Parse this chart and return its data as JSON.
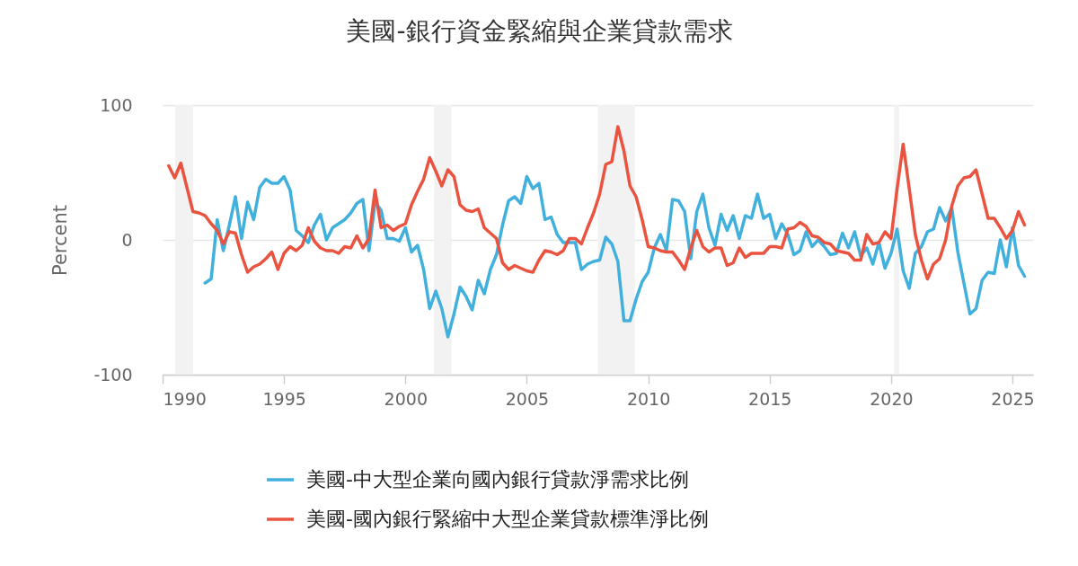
{
  "chart_data": {
    "type": "line",
    "title": "美國-銀行資金緊縮與企業貸款需求",
    "ylabel": "Percent",
    "x": [
      1990.25,
      1990.5,
      1990.75,
      1991,
      1991.25,
      1991.5,
      1991.75,
      1992,
      1992.25,
      1992.5,
      1992.75,
      1993,
      1993.25,
      1993.5,
      1993.75,
      1994,
      1994.25,
      1994.5,
      1994.75,
      1995,
      1995.25,
      1995.5,
      1995.75,
      1996,
      1996.25,
      1996.5,
      1996.75,
      1997,
      1997.25,
      1997.5,
      1997.75,
      1998,
      1998.25,
      1998.5,
      1998.75,
      1999,
      1999.25,
      1999.5,
      1999.75,
      2000,
      2000.25,
      2000.5,
      2000.75,
      2001,
      2001.25,
      2001.5,
      2001.75,
      2002,
      2002.25,
      2002.5,
      2002.75,
      2003,
      2003.25,
      2003.5,
      2003.75,
      2004,
      2004.25,
      2004.5,
      2004.75,
      2005,
      2005.25,
      2005.5,
      2005.75,
      2006,
      2006.25,
      2006.5,
      2006.75,
      2007,
      2007.25,
      2007.5,
      2007.75,
      2008,
      2008.25,
      2008.5,
      2008.75,
      2009,
      2009.25,
      2009.5,
      2009.75,
      2010,
      2010.25,
      2010.5,
      2010.75,
      2011,
      2011.25,
      2011.5,
      2011.75,
      2012,
      2012.25,
      2012.5,
      2012.75,
      2013,
      2013.25,
      2013.5,
      2013.75,
      2014,
      2014.25,
      2014.5,
      2014.75,
      2015,
      2015.25,
      2015.5,
      2015.75,
      2016,
      2016.25,
      2016.5,
      2016.75,
      2017,
      2017.25,
      2017.5,
      2017.75,
      2018,
      2018.25,
      2018.5,
      2018.75,
      2019,
      2019.25,
      2019.5,
      2019.75,
      2020,
      2020.25,
      2020.5,
      2020.75,
      2021,
      2021.25,
      2021.5,
      2021.75,
      2022,
      2022.25,
      2022.5,
      2022.75,
      2023,
      2023.25,
      2023.5,
      2023.75,
      2024,
      2024.25,
      2024.5,
      2024.75,
      2025,
      2025.25,
      2025.5
    ],
    "series": [
      {
        "name": "美國-中大型企業向國內銀行貸款淨需求比例",
        "color": "#41b0dc",
        "values": [
          null,
          null,
          null,
          null,
          null,
          null,
          -32,
          -29,
          15,
          -8,
          11,
          32,
          1,
          28,
          15,
          39,
          45,
          42,
          42,
          47,
          37,
          7,
          3,
          -2,
          11,
          19,
          0,
          9,
          12,
          15,
          20,
          27,
          30,
          -8,
          28,
          22,
          1,
          1,
          -1,
          9,
          -9,
          -4,
          -22,
          -51,
          -38,
          -51,
          -72,
          -55,
          -35,
          -42,
          -52,
          -30,
          -40,
          -22,
          -11,
          11,
          29,
          32,
          27,
          47,
          38,
          42,
          15,
          17,
          4,
          -2,
          -2,
          -2,
          -22,
          -18,
          -16,
          -15,
          2,
          -3,
          -16,
          -60,
          -60,
          -44,
          -31,
          -24,
          -6,
          4,
          -8,
          30,
          29,
          21,
          -14,
          21,
          34,
          9,
          -4,
          19,
          7,
          18,
          1,
          18,
          16,
          34,
          16,
          19,
          1,
          12,
          4,
          -11,
          -8,
          6,
          -5,
          0,
          -5,
          -11,
          -10,
          5,
          -6,
          6,
          -12,
          -6,
          -18,
          -2,
          -21,
          -10,
          8,
          -23,
          -36,
          -10,
          -5,
          6,
          8,
          24,
          14,
          24,
          -9,
          -32,
          -55,
          -51,
          -30,
          -24,
          -25,
          0,
          -20,
          9,
          -19,
          -27
        ]
      },
      {
        "name": "美國-國內銀行緊縮中大型企業貸款標準淨比例",
        "color": "#e9533f",
        "values": [
          55,
          46,
          57,
          39,
          21,
          20,
          18,
          12,
          7,
          -3,
          6,
          5,
          -11,
          -24,
          -20,
          -18,
          -14,
          -9,
          -22,
          -10,
          -5,
          -8,
          -4,
          9,
          -1,
          -6,
          -8,
          -8,
          -10,
          -5,
          -6,
          3,
          -6,
          1,
          37,
          9,
          11,
          7,
          10,
          12,
          26,
          36,
          45,
          61,
          51,
          40,
          52,
          47,
          26,
          22,
          21,
          23,
          9,
          5,
          1,
          -17,
          -22,
          -19,
          -21,
          -23,
          -24,
          -15,
          -8,
          -9,
          -11,
          -8,
          1,
          1,
          -3,
          9,
          20,
          34,
          56,
          58,
          84,
          66,
          40,
          32,
          15,
          -5,
          -6,
          -8,
          -9,
          -9,
          -15,
          -22,
          -6,
          7,
          -5,
          -9,
          -6,
          -6,
          -19,
          -17,
          -6,
          -13,
          -10,
          -10,
          -10,
          -5,
          -5,
          -6,
          8,
          9,
          13,
          10,
          3,
          2,
          -2,
          -3,
          -8,
          -9,
          -10,
          -15,
          -15,
          4,
          -3,
          -2,
          6,
          1,
          38,
          71,
          38,
          4,
          -15,
          -29,
          -18,
          -14,
          0,
          25,
          40,
          46,
          47,
          52,
          34,
          16,
          16,
          9,
          1,
          7,
          21,
          11
        ]
      }
    ],
    "xlim": [
      1990,
      2025.85
    ],
    "xticks": [
      1990,
      1995,
      2000,
      2005,
      2010,
      2015,
      2020,
      2025
    ],
    "ylim": [
      -100,
      100
    ],
    "yticks": [
      -100,
      0,
      100
    ],
    "bands": [
      {
        "axis": "x",
        "from": 1990.52,
        "to": 1991.26,
        "color": "#f2f2f2"
      },
      {
        "axis": "x",
        "from": 2001.18,
        "to": 2001.9,
        "color": "#f2f2f2"
      },
      {
        "axis": "x",
        "from": 2007.92,
        "to": 2009.45,
        "color": "#f2f2f2"
      },
      {
        "axis": "x",
        "from": 2020.13,
        "to": 2020.33,
        "color": "#f2f2f2"
      }
    ],
    "grid": "y",
    "legend": "bottom",
    "line_style": "solid"
  }
}
